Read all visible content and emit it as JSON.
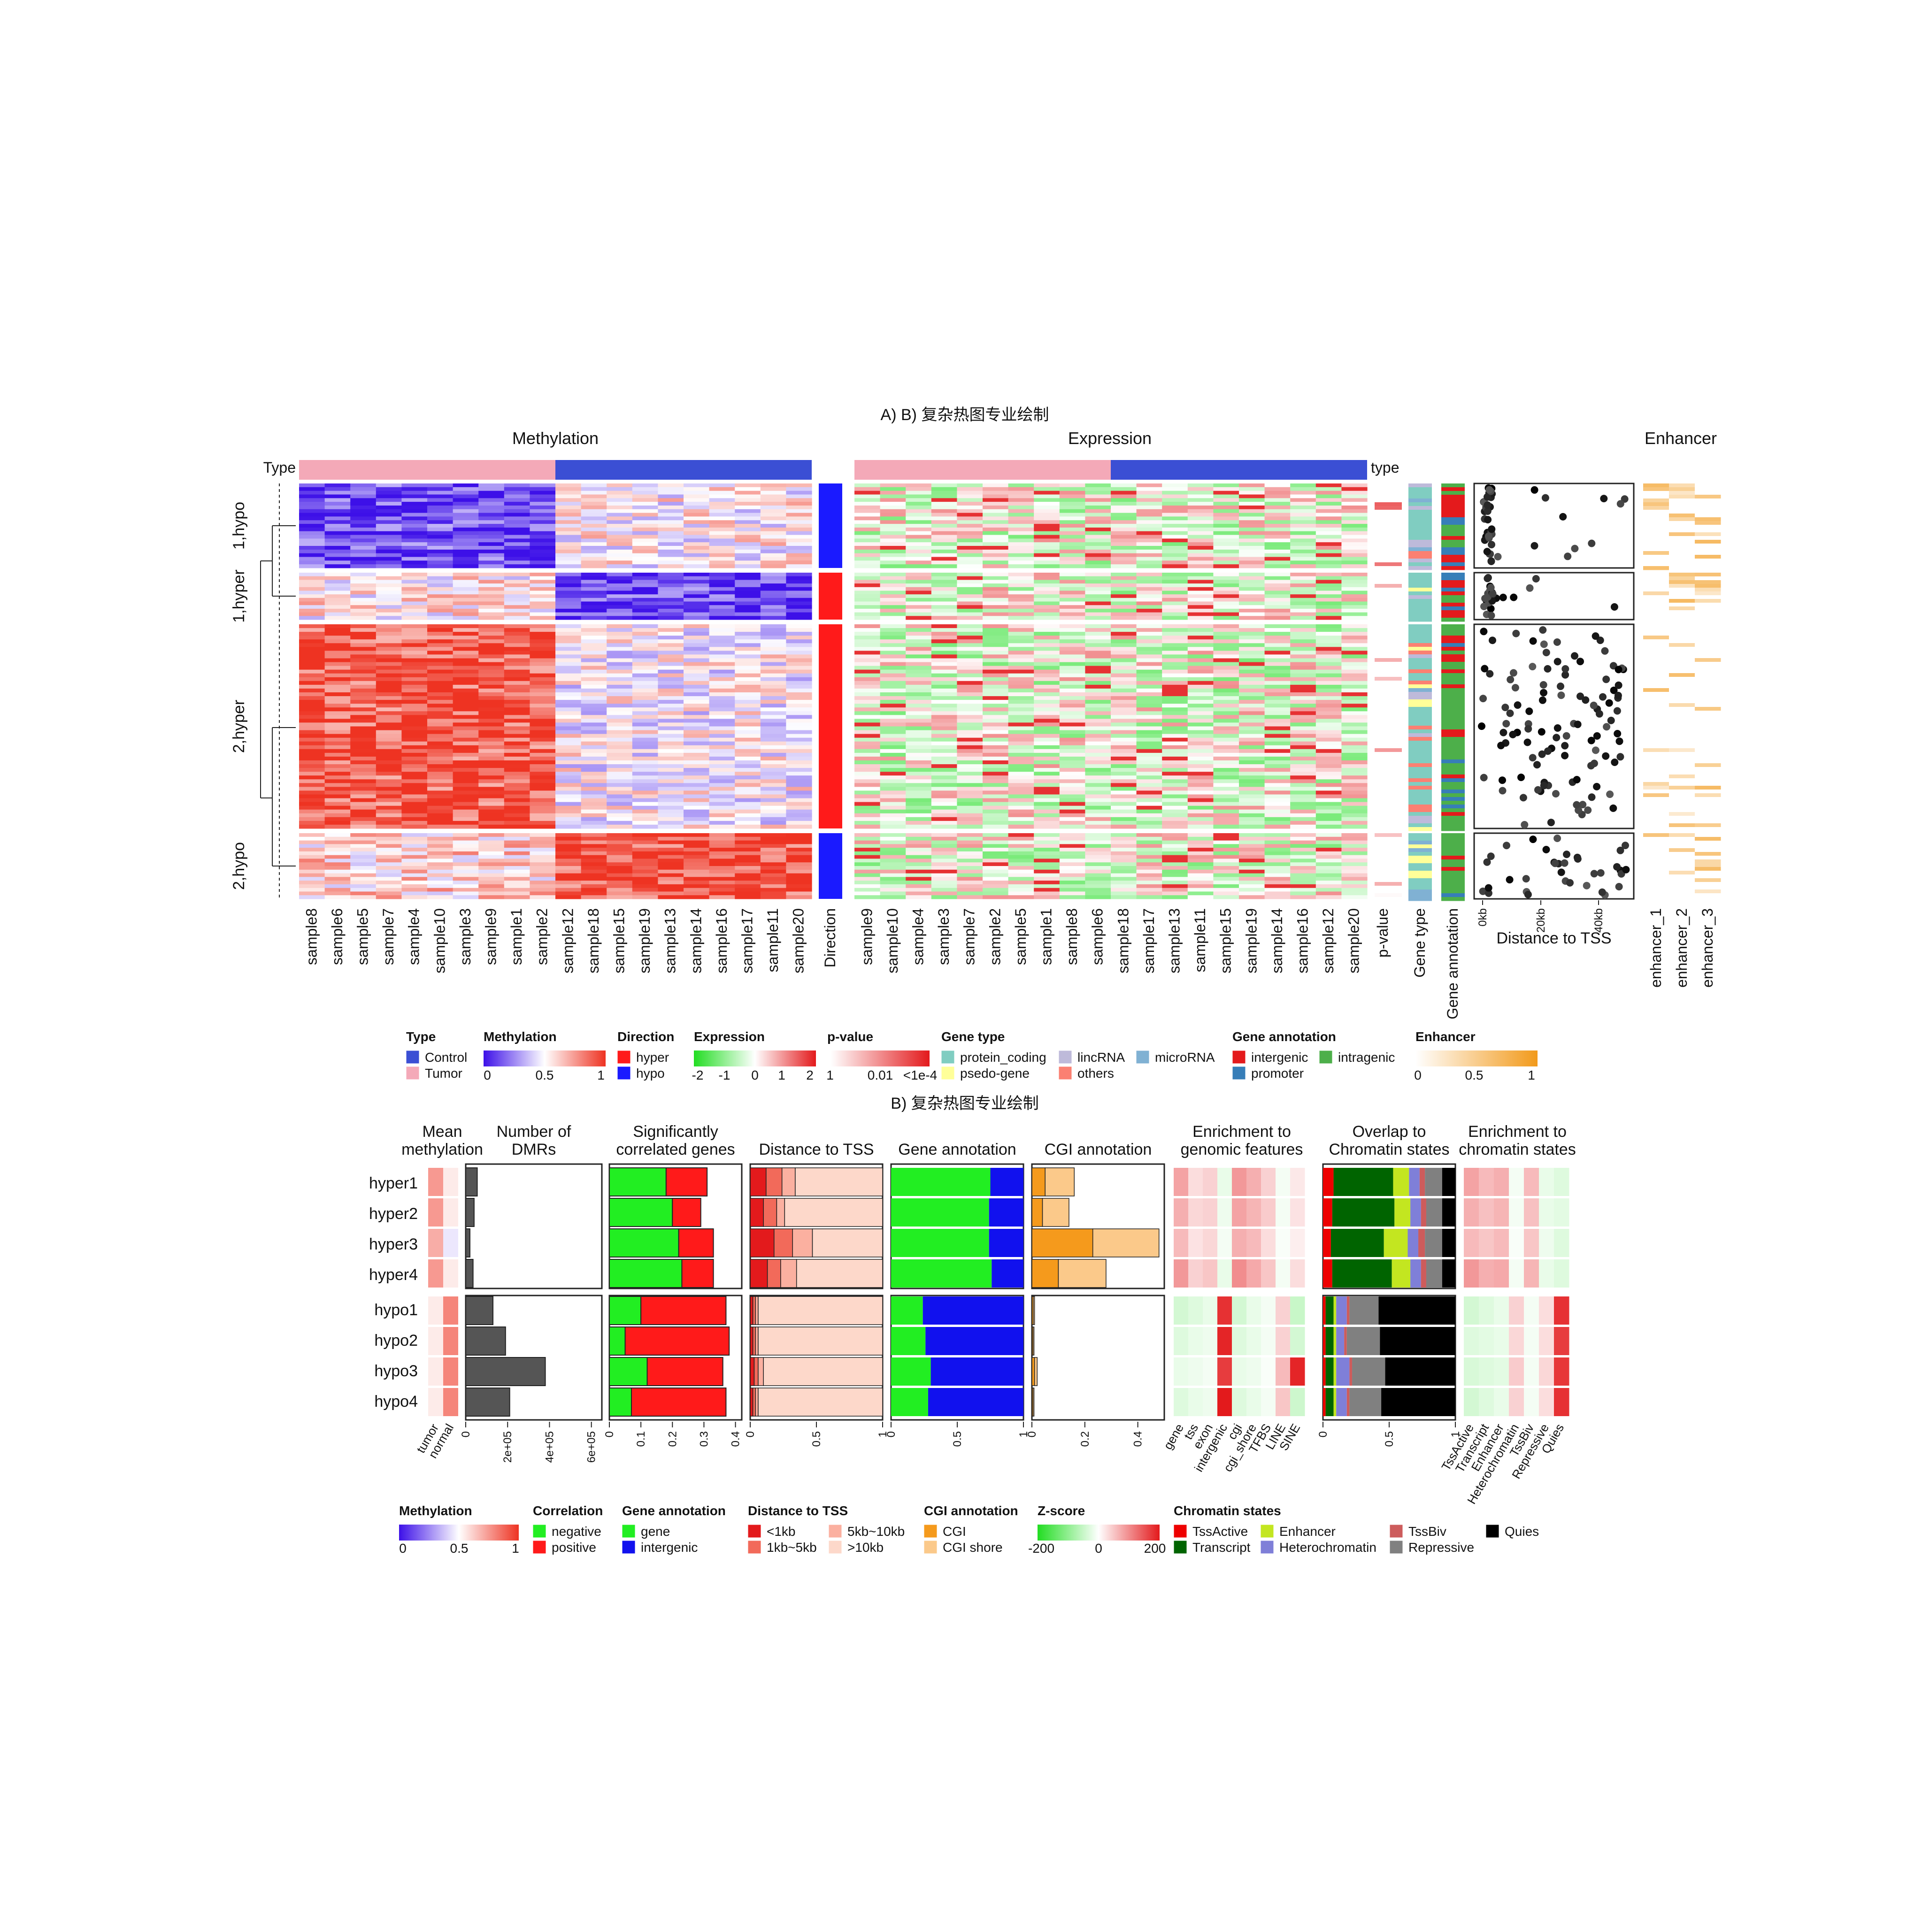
{
  "titles": {
    "panelA": "A) B) 复杂热图专业绘制",
    "panelB": "B) 复杂热图专业绘制",
    "methylation": "Methylation",
    "expression": "Expression",
    "enhancer": "Enhancer",
    "type": "Type",
    "type2": "type",
    "distance_to_tss": "Distance to TSS"
  },
  "colors": {
    "tumor": "#f4a9b8",
    "control": "#3b4fd4",
    "hyper": "#ff1a1a",
    "hypo": "#1a1aff",
    "meth_low": "#3d10e8",
    "meth_mid": "#ffffff",
    "meth_high": "#ee3322",
    "expr_low": "#22dd22",
    "expr_high": "#e31a1c",
    "enh_high": "#f29a1b",
    "protein_coding": "#80cdc1",
    "pseudo_gene": "#ffff99",
    "lincRNA": "#bebada",
    "microRNA": "#80b1d3",
    "others": "#fb8072",
    "intergenic": "#e41a1c",
    "promoter": "#377eb8",
    "intragenic": "#4daf4a",
    "gene": "#22ee22",
    "intergenic_b": "#1111ee",
    "tss_1": "#e31a1c",
    "tss_2": "#f26a5a",
    "tss_3": "#fbb0a0",
    "tss_4": "#fdd8ca",
    "cgi": "#f59a1c",
    "cgi_shore": "#fbc98a",
    "TssActive": "#ee0000",
    "Transcript": "#006400",
    "Enhancer": "#c3e620",
    "Heterochromatin": "#7f7fd8",
    "TssBiv": "#cd5c5c",
    "Repressive": "#808080",
    "Quies": "#000000"
  },
  "heatmapA": {
    "methylation_samples": [
      "sample8",
      "sample6",
      "sample5",
      "sample7",
      "sample4",
      "sample10",
      "sample3",
      "sample9",
      "sample1",
      "sample2",
      "sample12",
      "sample18",
      "sample15",
      "sample19",
      "sample13",
      "sample14",
      "sample16",
      "sample17",
      "sample11",
      "sample20"
    ],
    "expression_samples": [
      "sample9",
      "sample10",
      "sample4",
      "sample3",
      "sample7",
      "sample2",
      "sample5",
      "sample1",
      "sample8",
      "sample6",
      "sample18",
      "sample17",
      "sample13",
      "sample11",
      "sample15",
      "sample19",
      "sample14",
      "sample16",
      "sample12",
      "sample20"
    ],
    "row_groups": [
      "1,hypo",
      "1,hyper",
      "2,hyper",
      "2,hypo"
    ],
    "extra_columns": [
      "Direction",
      "p-value",
      "Gene type",
      "Gene annotation"
    ],
    "enhancer_columns": [
      "enhancer_1",
      "enhancer_2",
      "enhancer_3"
    ],
    "tss_ticks": [
      "0kb",
      "20kb",
      "40kb"
    ]
  },
  "legendA": [
    {
      "title": "Type",
      "items": [
        "Control",
        "Tumor"
      ]
    },
    {
      "title": "Methylation",
      "ticks": [
        "0",
        "0.5",
        "1"
      ]
    },
    {
      "title": "Direction",
      "items": [
        "hyper",
        "hypo"
      ]
    },
    {
      "title": "Expression",
      "ticks": [
        "-2",
        "-1",
        "0",
        "1",
        "2"
      ]
    },
    {
      "title": "p-value",
      "ticks": [
        "1",
        "0.01",
        "<1e-4"
      ]
    },
    {
      "title": "Gene type",
      "items": [
        "protein_coding",
        "psedo-gene",
        "lincRNA",
        "others",
        "microRNA"
      ]
    },
    {
      "title": "Gene annotation",
      "items": [
        "intergenic",
        "promoter",
        "intragenic"
      ]
    },
    {
      "title": "Enhancer",
      "ticks": [
        "0",
        "0.5",
        "1"
      ]
    }
  ],
  "panelB": {
    "rows": [
      "hyper1",
      "hyper2",
      "hyper3",
      "hyper4",
      "hypo1",
      "hypo2",
      "hypo3",
      "hypo4"
    ],
    "col_titles": {
      "mean": [
        "Mean",
        "methylation"
      ],
      "dmrs": [
        "Number of",
        "DMRs"
      ],
      "corr": [
        "Significantly",
        "correlated genes"
      ],
      "tss": [
        "Distance to TSS"
      ],
      "geneann": [
        "Gene annotation"
      ],
      "cgi": [
        "CGI annotation"
      ],
      "enrich_gen": [
        "Enrichment to",
        "genomic features"
      ],
      "overlap": [
        "Overlap to",
        "Chromatin states"
      ],
      "enrich_chr": [
        "Enrichment to",
        "chromatin states"
      ]
    },
    "mean_cols": [
      "tumor",
      "normal"
    ],
    "mean_methylation": [
      [
        0.75,
        0.55
      ],
      [
        0.75,
        0.55
      ],
      [
        0.7,
        0.45
      ],
      [
        0.75,
        0.55
      ],
      [
        0.55,
        0.8
      ],
      [
        0.55,
        0.8
      ],
      [
        0.55,
        0.8
      ],
      [
        0.55,
        0.8
      ]
    ],
    "dmr_ticks": [
      "0",
      "2e+05",
      "4e+05",
      "6e+05"
    ],
    "dmr_counts": [
      55000,
      40000,
      20000,
      35000,
      130000,
      190000,
      380000,
      210000
    ],
    "corr_ticks": [
      "0",
      "0.1",
      "0.2",
      "0.3",
      "0.4"
    ],
    "corr_negative": [
      0.18,
      0.2,
      0.22,
      0.23,
      0.1,
      0.05,
      0.12,
      0.07
    ],
    "corr_positive": [
      0.13,
      0.09,
      0.11,
      0.1,
      0.27,
      0.33,
      0.24,
      0.3
    ],
    "tss_ticks": [
      "0",
      "0.5",
      "1"
    ],
    "tss_fractions": [
      [
        0.12,
        0.12,
        0.1,
        0.66
      ],
      [
        0.1,
        0.1,
        0.06,
        0.74
      ],
      [
        0.18,
        0.14,
        0.15,
        0.53
      ],
      [
        0.13,
        0.1,
        0.12,
        0.65
      ],
      [
        0.02,
        0.02,
        0.02,
        0.94
      ],
      [
        0.02,
        0.02,
        0.02,
        0.94
      ],
      [
        0.03,
        0.03,
        0.04,
        0.9
      ],
      [
        0.02,
        0.02,
        0.02,
        0.94
      ]
    ],
    "geneann_ticks": [
      "0",
      "0.5",
      "1"
    ],
    "gene_fraction": [
      0.75,
      0.74,
      0.74,
      0.76,
      0.24,
      0.26,
      0.3,
      0.28
    ],
    "cgi_ticks": [
      "0",
      "0.2",
      "0.4"
    ],
    "cgi_values": [
      [
        0.05,
        0.11
      ],
      [
        0.04,
        0.1
      ],
      [
        0.23,
        0.25
      ],
      [
        0.1,
        0.18
      ],
      [
        0.005,
        0.005
      ],
      [
        0.004,
        0.004
      ],
      [
        0.01,
        0.01
      ],
      [
        0.004,
        0.004
      ]
    ],
    "genomic_features": [
      "gene",
      "tss",
      "exon",
      "intergenic",
      "cgi",
      "cgi_shore",
      "TFBS",
      "LINE",
      "SINE"
    ],
    "genomic_enrichment": [
      [
        80,
        30,
        40,
        -20,
        90,
        70,
        40,
        -10,
        20
      ],
      [
        70,
        35,
        40,
        -15,
        80,
        65,
        45,
        -10,
        25
      ],
      [
        60,
        25,
        35,
        -10,
        70,
        60,
        30,
        -5,
        15
      ],
      [
        90,
        40,
        50,
        -20,
        100,
        75,
        50,
        -10,
        30
      ],
      [
        -40,
        -30,
        -20,
        180,
        -40,
        -20,
        -10,
        40,
        -50
      ],
      [
        -30,
        -20,
        -15,
        190,
        -30,
        -20,
        -10,
        40,
        -40
      ],
      [
        -20,
        -15,
        -10,
        170,
        -20,
        -15,
        -5,
        60,
        190
      ],
      [
        -30,
        -20,
        -15,
        200,
        -30,
        -20,
        -10,
        50,
        -45
      ]
    ],
    "overlap_ticks": [
      "0",
      "0.5",
      "1"
    ],
    "chromatin_states": [
      "TssActive",
      "Transcript",
      "Enhancer",
      "Heterochromatin",
      "TssBiv",
      "Repressive",
      "Quies"
    ],
    "chromatin_overlap": [
      [
        0.08,
        0.45,
        0.12,
        0.08,
        0.04,
        0.13,
        0.1
      ],
      [
        0.07,
        0.47,
        0.12,
        0.08,
        0.04,
        0.12,
        0.1
      ],
      [
        0.06,
        0.4,
        0.18,
        0.08,
        0.05,
        0.13,
        0.1
      ],
      [
        0.07,
        0.45,
        0.14,
        0.08,
        0.04,
        0.12,
        0.1
      ],
      [
        0.02,
        0.06,
        0.02,
        0.08,
        0.02,
        0.22,
        0.58
      ],
      [
        0.02,
        0.06,
        0.02,
        0.06,
        0.02,
        0.25,
        0.57
      ],
      [
        0.02,
        0.06,
        0.02,
        0.1,
        0.02,
        0.25,
        0.53
      ],
      [
        0.02,
        0.06,
        0.02,
        0.08,
        0.02,
        0.24,
        0.56
      ]
    ],
    "chromatin_enrichment": [
      [
        80,
        60,
        70,
        -10,
        60,
        -20,
        -30
      ],
      [
        70,
        55,
        65,
        -10,
        55,
        -20,
        -25
      ],
      [
        60,
        50,
        60,
        -5,
        50,
        -15,
        -30
      ],
      [
        90,
        70,
        75,
        -10,
        65,
        -20,
        -30
      ],
      [
        -40,
        -30,
        -20,
        40,
        -10,
        30,
        180
      ],
      [
        -30,
        -25,
        -20,
        35,
        -10,
        30,
        170
      ],
      [
        -35,
        -30,
        -25,
        45,
        -10,
        35,
        175
      ],
      [
        -40,
        -30,
        -20,
        40,
        -10,
        30,
        180
      ]
    ]
  },
  "legendB": [
    {
      "title": "Methylation",
      "ticks": [
        "0",
        "0.5",
        "1"
      ]
    },
    {
      "title": "Correlation",
      "items": [
        "negative",
        "positive"
      ]
    },
    {
      "title": "Gene annotation",
      "items": [
        "gene",
        "intergenic"
      ]
    },
    {
      "title": "Distance to TSS",
      "items": [
        "<1kb",
        "1kb~5kb",
        "5kb~10kb",
        ">10kb"
      ]
    },
    {
      "title": "CGI annotation",
      "items": [
        "CGI",
        "CGI shore"
      ]
    },
    {
      "title": "Z-score",
      "ticks": [
        "-200",
        "0",
        "200"
      ]
    },
    {
      "title": "Chromatin states",
      "items": [
        "TssActive",
        "Transcript",
        "Enhancer",
        "Heterochromatin",
        "TssBiv",
        "Repressive",
        "Quies"
      ]
    }
  ],
  "chart_data": [
    {
      "type": "heatmap",
      "title": "Methylation",
      "x": [
        "sample8",
        "sample6",
        "sample5",
        "sample7",
        "sample4",
        "sample10",
        "sample3",
        "sample9",
        "sample1",
        "sample2",
        "sample12",
        "sample18",
        "sample15",
        "sample19",
        "sample13",
        "sample14",
        "sample16",
        "sample17",
        "sample11",
        "sample20"
      ],
      "row_groups": [
        "1,hypo",
        "1,hyper",
        "2,hyper",
        "2,hypo"
      ],
      "column_groups": [
        "Tumor",
        "Control"
      ],
      "value_range": [
        0,
        1
      ]
    },
    {
      "type": "heatmap",
      "title": "Expression",
      "x": [
        "sample9",
        "sample10",
        "sample4",
        "sample3",
        "sample7",
        "sample2",
        "sample5",
        "sample1",
        "sample8",
        "sample6",
        "sample18",
        "sample17",
        "sample13",
        "sample11",
        "sample15",
        "sample19",
        "sample14",
        "sample16",
        "sample12",
        "sample20"
      ],
      "value_range": [
        -2,
        2
      ]
    },
    {
      "type": "bar",
      "title": "Number of DMRs",
      "categories": [
        "hyper1",
        "hyper2",
        "hyper3",
        "hyper4",
        "hypo1",
        "hypo2",
        "hypo3",
        "hypo4"
      ],
      "values": [
        55000,
        40000,
        20000,
        35000,
        130000,
        190000,
        380000,
        210000
      ],
      "xlim": [
        0,
        650000
      ]
    },
    {
      "type": "bar",
      "title": "Significantly correlated genes",
      "categories": [
        "hyper1",
        "hyper2",
        "hyper3",
        "hyper4",
        "hypo1",
        "hypo2",
        "hypo3",
        "hypo4"
      ],
      "series": [
        {
          "name": "negative",
          "values": [
            0.18,
            0.2,
            0.22,
            0.23,
            0.1,
            0.05,
            0.12,
            0.07
          ]
        },
        {
          "name": "positive",
          "values": [
            0.13,
            0.09,
            0.11,
            0.1,
            0.27,
            0.33,
            0.24,
            0.3
          ]
        }
      ],
      "xlim": [
        0,
        0.4
      ]
    },
    {
      "type": "bar",
      "title": "Gene annotation",
      "categories": [
        "hyper1",
        "hyper2",
        "hyper3",
        "hyper4",
        "hypo1",
        "hypo2",
        "hypo3",
        "hypo4"
      ],
      "series": [
        {
          "name": "gene",
          "values": [
            0.75,
            0.74,
            0.74,
            0.76,
            0.24,
            0.26,
            0.3,
            0.28
          ]
        },
        {
          "name": "intergenic",
          "values": [
            0.25,
            0.26,
            0.26,
            0.24,
            0.76,
            0.74,
            0.7,
            0.72
          ]
        }
      ],
      "xlim": [
        0,
        1
      ]
    }
  ]
}
